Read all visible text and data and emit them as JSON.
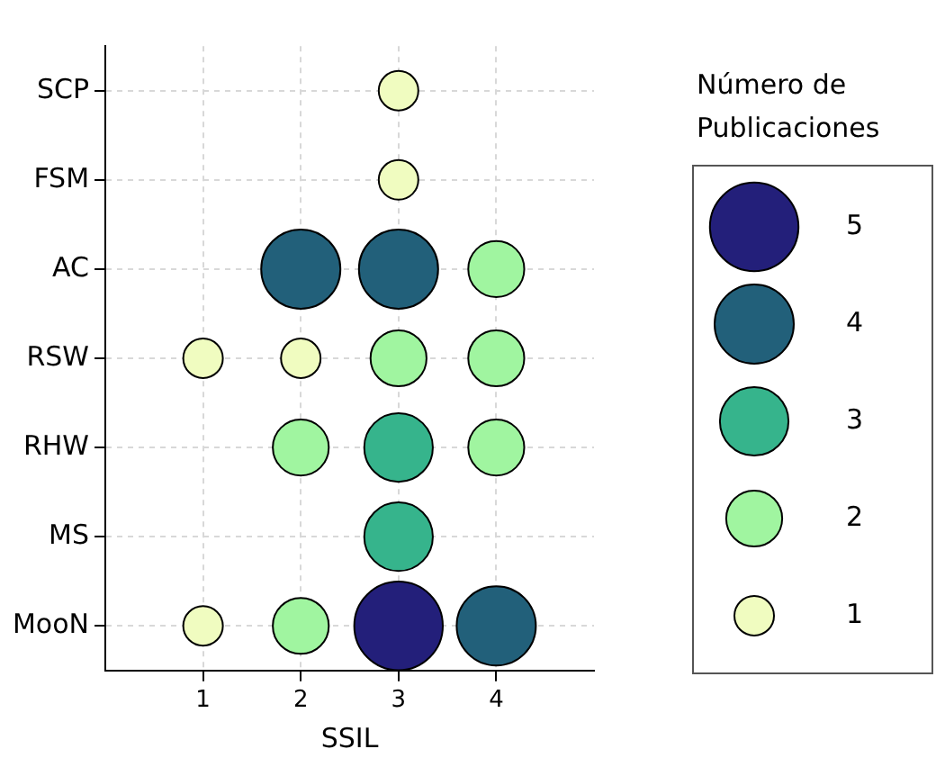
{
  "chart_data": {
    "type": "bubble",
    "orientation": "horizontal",
    "xlabel": "SSIL",
    "legend_title": "Número de Publicaciones",
    "grid": true,
    "xlim": [
      0,
      5
    ],
    "xticks": [
      1,
      2,
      3,
      4
    ],
    "categories": [
      "SCP",
      "FSM",
      "AC",
      "RSW",
      "RHW",
      "MS",
      "MooN"
    ],
    "size_legend": [
      1,
      2,
      3,
      4,
      5
    ],
    "series": [
      {
        "values": [
          null,
          null,
          null,
          1,
          null,
          null,
          1
        ],
        "sizes": [
          null,
          null,
          null,
          1,
          null,
          null,
          1
        ],
        "colors": [
          null,
          null,
          null,
          "#f0fcc0",
          null,
          null,
          "#f0fcc0"
        ]
      },
      {
        "values": [
          null,
          null,
          2,
          2,
          2,
          null,
          2
        ],
        "sizes": [
          null,
          null,
          4,
          1,
          2,
          null,
          2
        ],
        "colors": [
          null,
          null,
          "#22607a",
          "#f0fcc0",
          "#a0f5a0",
          null,
          "#a0f5a0"
        ]
      },
      {
        "values": [
          3,
          3,
          3,
          3,
          3,
          3,
          3
        ],
        "sizes": [
          1,
          1,
          4,
          2,
          3,
          3,
          5
        ],
        "colors": [
          "#f0fcc0",
          "#f0fcc0",
          "#22607a",
          "#a0f5a0",
          "#36b48c",
          "#36b48c",
          "#231f7a"
        ]
      },
      {
        "values": [
          null,
          null,
          4,
          4,
          4,
          null,
          4
        ],
        "sizes": [
          null,
          null,
          2,
          2,
          2,
          null,
          4
        ],
        "colors": [
          null,
          null,
          "#a0f5a0",
          "#a0f5a0",
          "#a0f5a0",
          null,
          "#22607a"
        ]
      }
    ]
  }
}
